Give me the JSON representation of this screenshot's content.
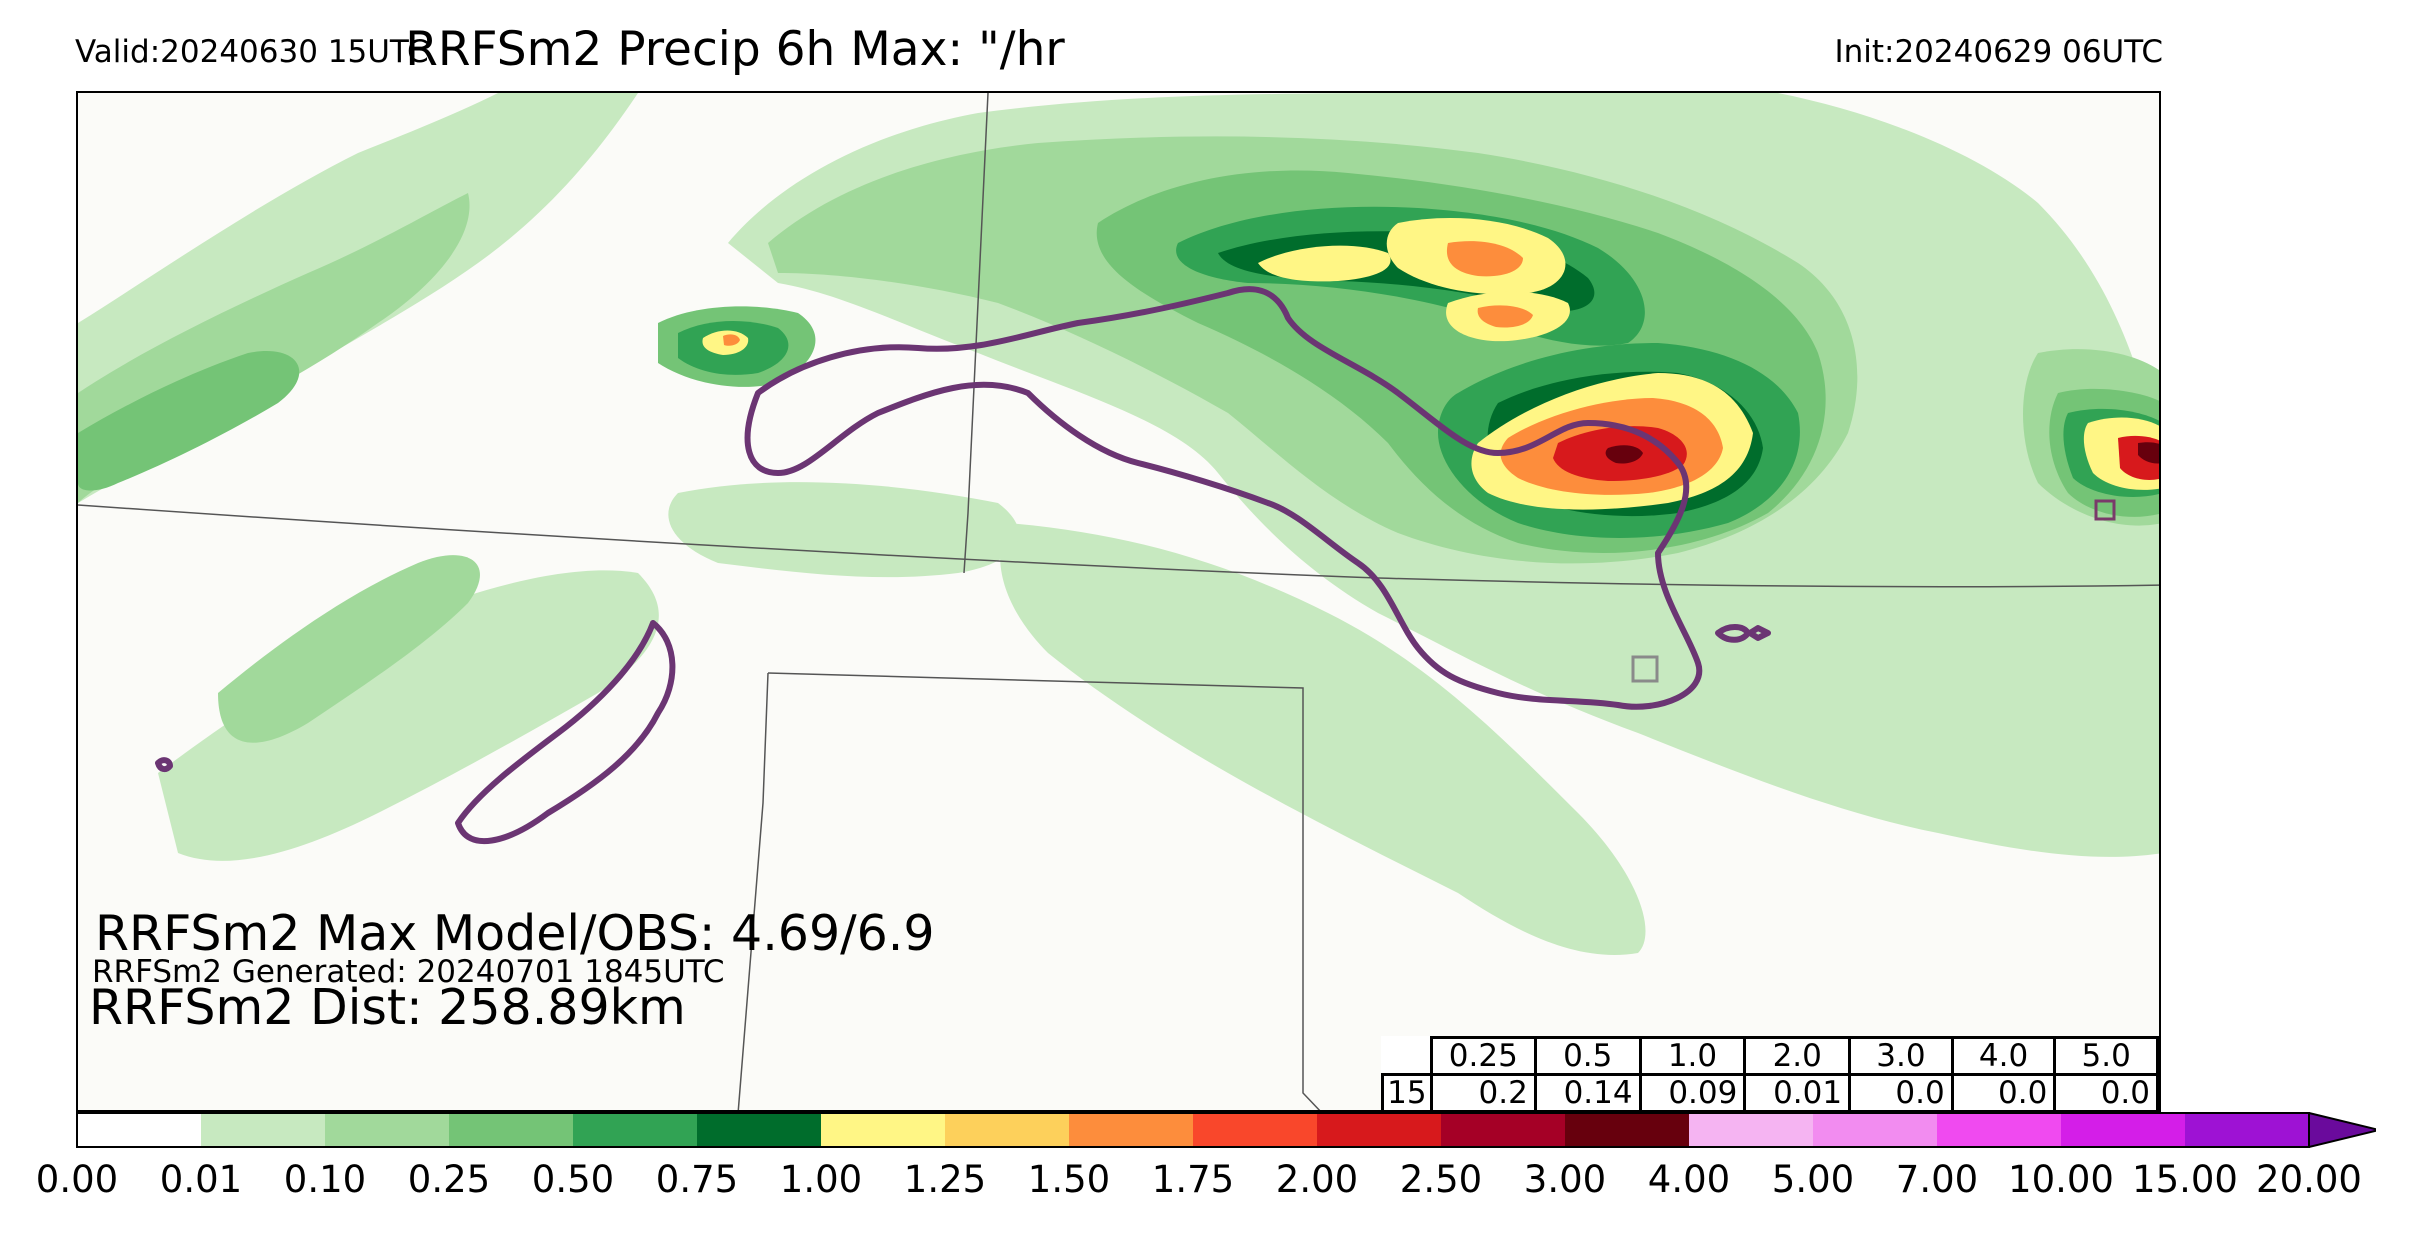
{
  "header": {
    "valid": "Valid:20240630 15UTC",
    "title": "RRFSm2 Precip 6h Max: \"/hr",
    "init": "Init:20240629 06UTC"
  },
  "stats": {
    "max_line": "RRFSm2 Max Model/OBS: 4.69/6.9",
    "generated_line": "RRFSm2 Generated: 20240701 1845UTC",
    "dist_line": "RRFSm2 Dist: 258.89km"
  },
  "threshold_table": {
    "thresholds": [
      "0.25",
      "0.5",
      "1.0",
      "2.0",
      "3.0",
      "4.0",
      "5.0"
    ],
    "row_label": "15",
    "values": [
      "0.2",
      "0.14",
      "0.09",
      "0.01",
      "0.0",
      "0.0",
      "0.0"
    ]
  },
  "colorbar": {
    "ticks": [
      "0.00",
      "0.01",
      "0.10",
      "0.25",
      "0.50",
      "0.75",
      "1.00",
      "1.25",
      "1.50",
      "1.75",
      "2.00",
      "2.50",
      "3.00",
      "4.00",
      "5.00",
      "7.00",
      "10.00",
      "15.00",
      "20.00"
    ],
    "colors": [
      "#ffffff",
      "#c7e9c0",
      "#a1d99b",
      "#74c476",
      "#31a354",
      "#006d2c",
      "#fff685",
      "#fdd05b",
      "#fd8d3c",
      "#f9472b",
      "#d7191c",
      "#a50026",
      "#67000d",
      "#f5b4f2",
      "#f28cf0",
      "#f04af0",
      "#d41ee8",
      "#9e12d4"
    ],
    "extend_color": "#6a0a9c"
  },
  "map_colors": {
    "background": "#fbfbf8",
    "border_line": "#555555",
    "obs_contour": "#6b3573"
  }
}
